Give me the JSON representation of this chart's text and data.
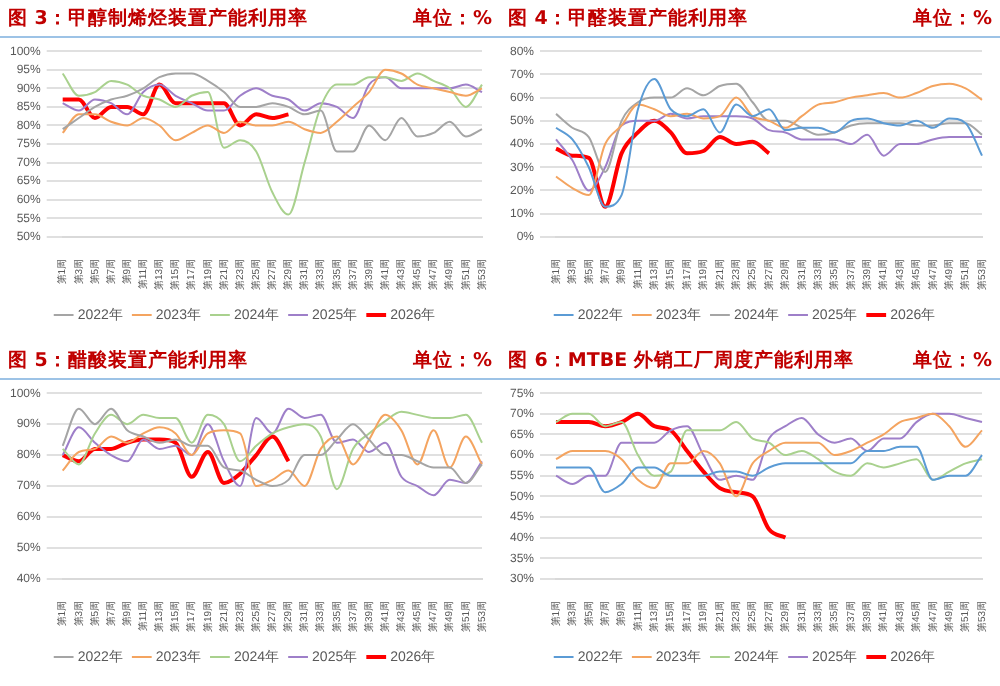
{
  "chart_data": [
    {
      "type": "line",
      "title": "图 3：甲醇制烯烃装置产能利用率",
      "subtitle": "单位：%",
      "categories": [
        "第1周",
        "第3周",
        "第5周",
        "第7周",
        "第9周",
        "第11周",
        "第13周",
        "第15周",
        "第17周",
        "第19周",
        "第21周",
        "第23周",
        "第25周",
        "第27周",
        "第29周",
        "第31周",
        "第33周",
        "第35周",
        "第37周",
        "第39周",
        "第41周",
        "第43周",
        "第45周",
        "第47周",
        "第49周",
        "第51周",
        "第53周"
      ],
      "ylim": [
        50,
        100
      ],
      "yticks": [
        {
          "value": 50,
          "label": "50%"
        },
        {
          "value": 55,
          "label": "55%"
        },
        {
          "value": 60,
          "label": "60%"
        },
        {
          "value": 65,
          "label": "65%"
        },
        {
          "value": 70,
          "label": "70%"
        },
        {
          "value": 75,
          "label": "75%"
        },
        {
          "value": 80,
          "label": "80%"
        },
        {
          "value": 85,
          "label": "85%"
        },
        {
          "value": 90,
          "label": "90%"
        },
        {
          "value": 95,
          "label": "95%"
        },
        {
          "value": 100,
          "label": "100%"
        }
      ],
      "grid": "y",
      "legend": "bottom",
      "series": [
        {
          "name": "2022年",
          "color": "#a5a5a5",
          "values": [
            79,
            82,
            85,
            87,
            88,
            90,
            93,
            94,
            94,
            92,
            89,
            85,
            85,
            86,
            85,
            83,
            84,
            73,
            73,
            80,
            76,
            82,
            77,
            78,
            81,
            77,
            79
          ]
        },
        {
          "name": "2023年",
          "color": "#f4a460",
          "values": [
            78,
            83,
            83,
            81,
            80,
            82,
            80,
            76,
            78,
            80,
            78,
            81,
            80,
            80,
            81,
            79,
            78,
            81,
            85,
            89,
            95,
            94,
            91,
            90,
            89,
            88,
            90
          ]
        },
        {
          "name": "2024年",
          "color": "#a9d18e",
          "values": [
            94,
            88,
            89,
            92,
            91,
            88,
            87,
            85,
            88,
            89,
            74,
            76,
            73,
            62,
            56,
            70,
            85,
            91,
            91,
            93,
            93,
            92,
            94,
            92,
            90,
            85,
            91
          ]
        },
        {
          "name": "2025年",
          "color": "#9e7fc9",
          "values": [
            86,
            84,
            87,
            86,
            83,
            89,
            91,
            88,
            86,
            84,
            84,
            88,
            90,
            88,
            87,
            84,
            86,
            85,
            82,
            91,
            93,
            90,
            90,
            90,
            90,
            91,
            89
          ]
        },
        {
          "name": "2026年",
          "color": "#ff0000",
          "values": [
            87,
            87,
            82,
            85,
            85,
            83,
            91,
            86,
            86,
            86,
            86,
            80,
            83,
            82,
            83,
            null,
            null,
            null,
            null,
            null,
            null,
            null,
            null,
            null,
            null,
            null,
            null
          ]
        }
      ]
    },
    {
      "type": "line",
      "title": "图 4：甲醛装置产能利用率",
      "subtitle": "单位：%",
      "categories": [
        "第1周",
        "第3周",
        "第5周",
        "第7周",
        "第9周",
        "第11周",
        "第13周",
        "第15周",
        "第17周",
        "第19周",
        "第21周",
        "第23周",
        "第25周",
        "第27周",
        "第29周",
        "第31周",
        "第33周",
        "第35周",
        "第37周",
        "第39周",
        "第41周",
        "第43周",
        "第45周",
        "第47周",
        "第49周",
        "第51周",
        "第53周"
      ],
      "ylim": [
        0,
        80
      ],
      "yticks": [
        {
          "value": 0,
          "label": "0%"
        },
        {
          "value": 10,
          "label": "10%"
        },
        {
          "value": 20,
          "label": "20%"
        },
        {
          "value": 30,
          "label": "30%"
        },
        {
          "value": 40,
          "label": "40%"
        },
        {
          "value": 50,
          "label": "50%"
        },
        {
          "value": 60,
          "label": "60%"
        },
        {
          "value": 70,
          "label": "70%"
        },
        {
          "value": 80,
          "label": "80%"
        }
      ],
      "grid": "y",
      "legend": "bottom",
      "series": [
        {
          "name": "2022年",
          "color": "#5b9bd5",
          "values": [
            47,
            42,
            30,
            13,
            18,
            55,
            68,
            55,
            52,
            55,
            45,
            57,
            52,
            55,
            46,
            47,
            47,
            45,
            50,
            51,
            49,
            48,
            50,
            47,
            51,
            49,
            35
          ]
        },
        {
          "name": "2023年",
          "color": "#f4a460",
          "values": [
            26,
            21,
            18,
            40,
            48,
            57,
            55,
            52,
            53,
            51,
            52,
            60,
            52,
            50,
            47,
            52,
            57,
            58,
            60,
            61,
            62,
            60,
            62,
            65,
            66,
            64,
            59
          ]
        },
        {
          "name": "2024年",
          "color": "#a5a5a5",
          "values": [
            53,
            47,
            43,
            28,
            50,
            58,
            60,
            60,
            64,
            61,
            65,
            66,
            58,
            50,
            50,
            47,
            44,
            45,
            48,
            49,
            49,
            49,
            48,
            48,
            49,
            49,
            44
          ]
        },
        {
          "name": "2025年",
          "color": "#9e7fc9",
          "values": [
            42,
            33,
            20,
            30,
            48,
            50,
            50,
            53,
            51,
            52,
            52,
            52,
            51,
            46,
            45,
            42,
            42,
            42,
            40,
            44,
            35,
            40,
            40,
            42,
            43,
            43,
            43
          ]
        },
        {
          "name": "2026年",
          "color": "#ff0000",
          "values": [
            38,
            35,
            34,
            13,
            36,
            45,
            50,
            45,
            36,
            37,
            43,
            40,
            41,
            36,
            null,
            null,
            null,
            null,
            null,
            null,
            null,
            null,
            null,
            null,
            null,
            null,
            null
          ]
        }
      ]
    },
    {
      "type": "line",
      "title": "图 5：醋酸装置产能利用率",
      "subtitle": "单位：%",
      "categories": [
        "第1周",
        "第3周",
        "第5周",
        "第7周",
        "第9周",
        "第11周",
        "第13周",
        "第15周",
        "第17周",
        "第19周",
        "第21周",
        "第23周",
        "第25周",
        "第27周",
        "第29周",
        "第31周",
        "第33周",
        "第35周",
        "第37周",
        "第39周",
        "第41周",
        "第43周",
        "第45周",
        "第47周",
        "第49周",
        "第51周",
        "第53周"
      ],
      "ylim": [
        40,
        100
      ],
      "yticks": [
        {
          "value": 40,
          "label": "40%"
        },
        {
          "value": 50,
          "label": "50%"
        },
        {
          "value": 60,
          "label": "60%"
        },
        {
          "value": 70,
          "label": "70%"
        },
        {
          "value": 80,
          "label": "80%"
        },
        {
          "value": 90,
          "label": "90%"
        },
        {
          "value": 100,
          "label": "100%"
        }
      ],
      "grid": "y",
      "legend": "bottom",
      "series": [
        {
          "name": "2022年",
          "color": "#a5a5a5",
          "values": [
            83,
            95,
            90,
            95,
            88,
            86,
            84,
            85,
            83,
            83,
            76,
            75,
            72,
            70,
            72,
            80,
            80,
            85,
            90,
            85,
            80,
            80,
            78,
            76,
            76,
            71,
            77
          ]
        },
        {
          "name": "2023年",
          "color": "#f4a460",
          "values": [
            75,
            81,
            82,
            86,
            84,
            87,
            89,
            87,
            80,
            87,
            88,
            87,
            70,
            72,
            75,
            70,
            82,
            86,
            77,
            85,
            93,
            88,
            77,
            88,
            76,
            86,
            77
          ]
        },
        {
          "name": "2024年",
          "color": "#a9d18e",
          "values": [
            82,
            77,
            87,
            93,
            90,
            93,
            92,
            92,
            84,
            93,
            90,
            78,
            83,
            87,
            89,
            90,
            86,
            69,
            82,
            87,
            91,
            94,
            93,
            92,
            92,
            93,
            84
          ]
        },
        {
          "name": "2025年",
          "color": "#9e7fc9",
          "values": [
            80,
            89,
            84,
            80,
            78,
            85,
            82,
            83,
            80,
            90,
            78,
            70,
            92,
            87,
            95,
            92,
            93,
            84,
            85,
            81,
            84,
            73,
            70,
            67,
            72,
            71,
            78
          ]
        },
        {
          "name": "2026年",
          "color": "#ff0000",
          "values": [
            80,
            78,
            82,
            82,
            84,
            85,
            85,
            84,
            73,
            81,
            71,
            74,
            80,
            86,
            78,
            null,
            null,
            null,
            null,
            null,
            null,
            null,
            null,
            null,
            null,
            null,
            null
          ]
        }
      ]
    },
    {
      "type": "line",
      "title": "图 6：MTBE 外销工厂周度产能利用率",
      "subtitle": "单位：%",
      "categories": [
        "第1周",
        "第3周",
        "第5周",
        "第7周",
        "第9周",
        "第11周",
        "第13周",
        "第15周",
        "第17周",
        "第19周",
        "第21周",
        "第23周",
        "第25周",
        "第27周",
        "第29周",
        "第31周",
        "第33周",
        "第35周",
        "第37周",
        "第39周",
        "第41周",
        "第43周",
        "第45周",
        "第47周",
        "第49周",
        "第51周",
        "第53周"
      ],
      "ylim": [
        30,
        75
      ],
      "yticks": [
        {
          "value": 30,
          "label": "30%"
        },
        {
          "value": 35,
          "label": "35%"
        },
        {
          "value": 40,
          "label": "40%"
        },
        {
          "value": 45,
          "label": "45%"
        },
        {
          "value": 50,
          "label": "50%"
        },
        {
          "value": 55,
          "label": "55%"
        },
        {
          "value": 60,
          "label": "60%"
        },
        {
          "value": 65,
          "label": "65%"
        },
        {
          "value": 70,
          "label": "70%"
        },
        {
          "value": 75,
          "label": "75%"
        }
      ],
      "grid": "y",
      "legend": "bottom",
      "series": [
        {
          "name": "2022年",
          "color": "#5b9bd5",
          "values": [
            57,
            57,
            57,
            51,
            53,
            57,
            57,
            55,
            55,
            55,
            56,
            56,
            55,
            57,
            58,
            58,
            58,
            58,
            58,
            61,
            61,
            62,
            62,
            54,
            55,
            55,
            60
          ]
        },
        {
          "name": "2023年",
          "color": "#f4a460",
          "values": [
            59,
            61,
            61,
            61,
            59,
            54,
            52,
            58,
            58,
            61,
            58,
            50,
            58,
            61,
            63,
            63,
            63,
            60,
            61,
            63,
            65,
            68,
            69,
            70,
            67,
            62,
            66
          ]
        },
        {
          "name": "2024年",
          "color": "#a9d18e",
          "values": [
            68,
            70,
            70,
            67,
            68,
            60,
            55,
            56,
            66,
            66,
            66,
            68,
            64,
            63,
            60,
            61,
            59,
            56,
            55,
            58,
            57,
            58,
            59,
            54,
            56,
            58,
            59
          ]
        },
        {
          "name": "2025年",
          "color": "#9e7fc9",
          "values": [
            55,
            53,
            55,
            55,
            63,
            63,
            63,
            66,
            67,
            60,
            54,
            55,
            54,
            64,
            67,
            69,
            65,
            63,
            64,
            61,
            64,
            64,
            68,
            70,
            70,
            69,
            68
          ]
        },
        {
          "name": "2026年",
          "color": "#ff0000",
          "values": [
            68,
            68,
            68,
            67,
            68,
            70,
            67,
            66,
            61,
            56,
            52,
            51,
            50,
            42,
            40,
            null,
            null,
            null,
            null,
            null,
            null,
            null,
            null,
            null,
            null,
            null,
            null
          ]
        }
      ]
    }
  ]
}
